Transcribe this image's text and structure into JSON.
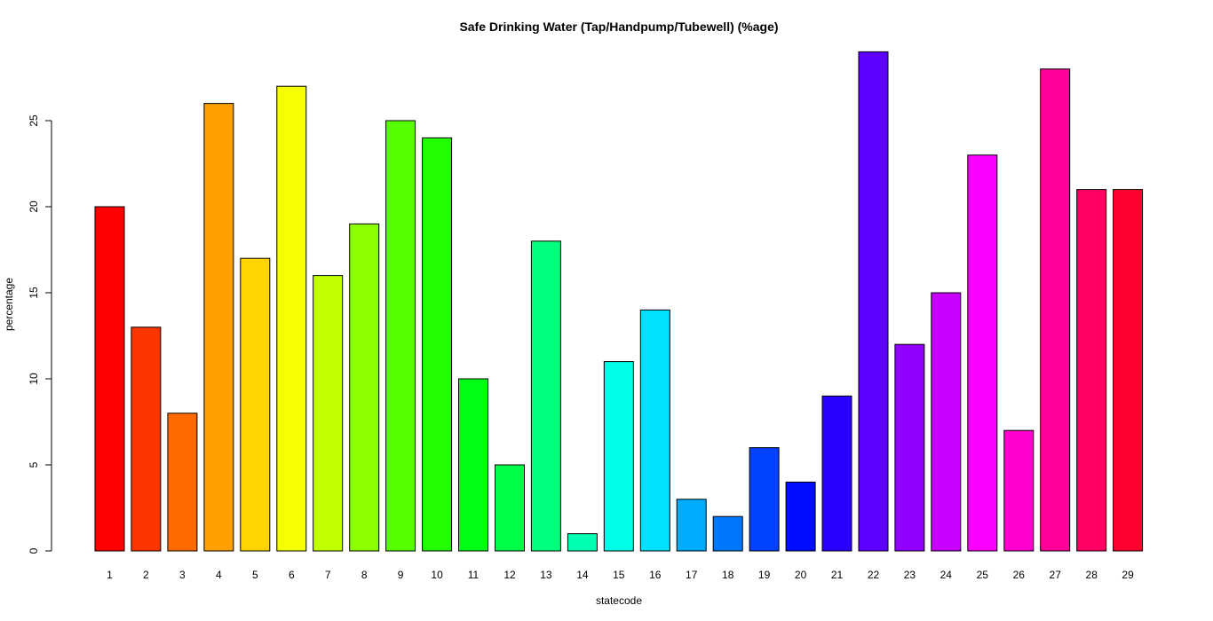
{
  "chart_data": {
    "type": "bar",
    "title": "Safe Drinking Water (Tap/Handpump/Tubewell) (%age)",
    "xlabel": "statecode",
    "ylabel": "percentage",
    "ylim": [
      0,
      29
    ],
    "yticks": [
      0,
      5,
      10,
      15,
      20,
      25
    ],
    "grid": false,
    "categories": [
      "1",
      "2",
      "3",
      "4",
      "5",
      "6",
      "7",
      "8",
      "9",
      "10",
      "11",
      "12",
      "13",
      "14",
      "15",
      "16",
      "17",
      "18",
      "19",
      "20",
      "21",
      "22",
      "23",
      "24",
      "25",
      "26",
      "27",
      "28",
      "29"
    ],
    "values": [
      20,
      13,
      8,
      26,
      17,
      27,
      16,
      19,
      25,
      24,
      10,
      5,
      18,
      1,
      11,
      14,
      3,
      2,
      6,
      4,
      9,
      29,
      12,
      15,
      23,
      7,
      28,
      21,
      21
    ],
    "colors": [
      "#FF0000",
      "#FF3500",
      "#FF6A00",
      "#FF9F00",
      "#FFD400",
      "#F5FF00",
      "#C0FF00",
      "#8BFF00",
      "#56FF00",
      "#21FF00",
      "#00FF14",
      "#00FF49",
      "#00FF7E",
      "#00FFB3",
      "#00FFE8",
      "#00E1FF",
      "#00ACFF",
      "#0077FF",
      "#0042FF",
      "#000DFF",
      "#2800FF",
      "#5D00FF",
      "#9200FF",
      "#C700FF",
      "#FB00FF",
      "#FF00CE",
      "#FF0099",
      "#FF0064",
      "#FF002F"
    ]
  }
}
